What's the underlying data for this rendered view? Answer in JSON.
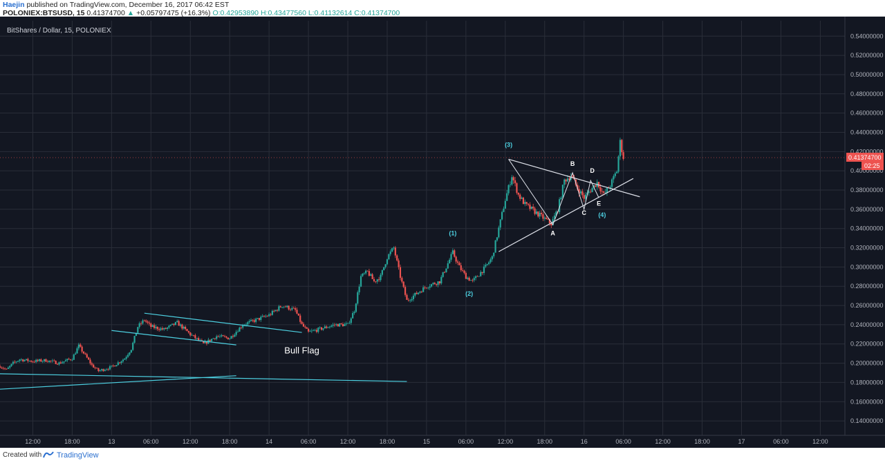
{
  "header": {
    "author": "Haejin",
    "published_text": "published on TradingView.com, December 16, 2017 06:42 EST",
    "symbol_interval": "POLONIEX:BTSUSD, 15",
    "last": "0.41374700",
    "change": "+0.05797475 (+16.3%)",
    "open": "O:0.42953890",
    "high": "H:0.43477560",
    "low": "L:0.41132614",
    "close": "C:0.41374700"
  },
  "footer": {
    "created_with": "Created with",
    "brand": "TradingView"
  },
  "colors": {
    "background": "#131722",
    "grid": "#2a2e39",
    "up": "#26a69a",
    "down": "#ef5350",
    "teal_line": "#4dd0e1",
    "white_line": "#e0e3eb",
    "price_tag": "#ef5350"
  },
  "chart_data": {
    "type": "candlestick",
    "title": "BitShares / Dollar, 15, POLONIEX",
    "x_range": [
      "2017-12-12T07:00",
      "2017-12-17T15:45"
    ],
    "ylim": [
      0.125,
      0.556
    ],
    "y_ticks": [
      "0.54000000",
      "0.52000000",
      "0.50000000",
      "0.48000000",
      "0.46000000",
      "0.44000000",
      "0.42000000",
      "0.40000000",
      "0.38000000",
      "0.36000000",
      "0.34000000",
      "0.32000000",
      "0.30000000",
      "0.28000000",
      "0.26000000",
      "0.24000000",
      "0.22000000",
      "0.20000000",
      "0.18000000",
      "0.16000000",
      "0.14000000"
    ],
    "x_ticks": [
      {
        "t": "2017-12-12T12:00",
        "label": "12:00"
      },
      {
        "t": "2017-12-12T18:00",
        "label": "18:00"
      },
      {
        "t": "2017-12-13T00:00",
        "label": "13"
      },
      {
        "t": "2017-12-13T06:00",
        "label": "06:00"
      },
      {
        "t": "2017-12-13T12:00",
        "label": "12:00"
      },
      {
        "t": "2017-12-13T18:00",
        "label": "18:00"
      },
      {
        "t": "2017-12-14T00:00",
        "label": "14"
      },
      {
        "t": "2017-12-14T06:00",
        "label": "06:00"
      },
      {
        "t": "2017-12-14T12:00",
        "label": "12:00"
      },
      {
        "t": "2017-12-14T18:00",
        "label": "18:00"
      },
      {
        "t": "2017-12-15T00:00",
        "label": "15"
      },
      {
        "t": "2017-12-15T06:00",
        "label": "06:00"
      },
      {
        "t": "2017-12-15T12:00",
        "label": "12:00"
      },
      {
        "t": "2017-12-15T18:00",
        "label": "18:00"
      },
      {
        "t": "2017-12-16T00:00",
        "label": "16"
      },
      {
        "t": "2017-12-16T06:00",
        "label": "06:00"
      },
      {
        "t": "2017-12-16T12:00",
        "label": "12:00"
      },
      {
        "t": "2017-12-16T18:00",
        "label": "18:00"
      },
      {
        "t": "2017-12-17T00:00",
        "label": "17"
      },
      {
        "t": "2017-12-17T06:00",
        "label": "06:00"
      },
      {
        "t": "2017-12-17T12:00",
        "label": "12:00"
      }
    ],
    "price_path": [
      [
        "2017-12-12T07:00",
        0.197
      ],
      [
        "2017-12-12T08:00",
        0.193
      ],
      [
        "2017-12-12T09:00",
        0.2
      ],
      [
        "2017-12-12T10:00",
        0.204
      ],
      [
        "2017-12-12T12:00",
        0.202
      ],
      [
        "2017-12-12T14:00",
        0.203
      ],
      [
        "2017-12-12T16:00",
        0.2
      ],
      [
        "2017-12-12T18:00",
        0.205
      ],
      [
        "2017-12-12T19:00",
        0.218
      ],
      [
        "2017-12-12T20:00",
        0.208
      ],
      [
        "2017-12-12T21:00",
        0.198
      ],
      [
        "2017-12-12T22:00",
        0.192
      ],
      [
        "2017-12-13T00:00",
        0.196
      ],
      [
        "2017-12-13T02:00",
        0.205
      ],
      [
        "2017-12-13T03:00",
        0.215
      ],
      [
        "2017-12-13T04:00",
        0.238
      ],
      [
        "2017-12-13T05:00",
        0.245
      ],
      [
        "2017-12-13T06:00",
        0.238
      ],
      [
        "2017-12-13T08:00",
        0.235
      ],
      [
        "2017-12-13T10:00",
        0.242
      ],
      [
        "2017-12-13T12:00",
        0.23
      ],
      [
        "2017-12-13T14:00",
        0.22
      ],
      [
        "2017-12-13T16:00",
        0.228
      ],
      [
        "2017-12-13T18:00",
        0.226
      ],
      [
        "2017-12-13T20:00",
        0.24
      ],
      [
        "2017-12-13T22:00",
        0.245
      ],
      [
        "2017-12-14T00:00",
        0.25
      ],
      [
        "2017-12-14T02:00",
        0.26
      ],
      [
        "2017-12-14T04:00",
        0.255
      ],
      [
        "2017-12-14T05:00",
        0.24
      ],
      [
        "2017-12-14T06:00",
        0.232
      ],
      [
        "2017-12-14T08:00",
        0.236
      ],
      [
        "2017-12-14T10:00",
        0.24
      ],
      [
        "2017-12-14T12:00",
        0.24
      ],
      [
        "2017-12-14T13:00",
        0.255
      ],
      [
        "2017-12-14T14:00",
        0.29
      ],
      [
        "2017-12-14T15:00",
        0.295
      ],
      [
        "2017-12-14T16:00",
        0.285
      ],
      [
        "2017-12-14T17:00",
        0.29
      ],
      [
        "2017-12-14T18:00",
        0.31
      ],
      [
        "2017-12-14T19:00",
        0.32
      ],
      [
        "2017-12-14T20:00",
        0.29
      ],
      [
        "2017-12-14T21:00",
        0.265
      ],
      [
        "2017-12-14T22:00",
        0.27
      ],
      [
        "2017-12-15T00:00",
        0.28
      ],
      [
        "2017-12-15T02:00",
        0.285
      ],
      [
        "2017-12-15T03:00",
        0.3
      ],
      [
        "2017-12-15T04:00",
        0.315
      ],
      [
        "2017-12-15T05:00",
        0.3
      ],
      [
        "2017-12-15T06:00",
        0.29
      ],
      [
        "2017-12-15T07:00",
        0.285
      ],
      [
        "2017-12-15T09:00",
        0.3
      ],
      [
        "2017-12-15T10:00",
        0.31
      ],
      [
        "2017-12-15T11:00",
        0.34
      ],
      [
        "2017-12-15T12:00",
        0.37
      ],
      [
        "2017-12-15T13:00",
        0.395
      ],
      [
        "2017-12-15T14:00",
        0.375
      ],
      [
        "2017-12-15T15:00",
        0.365
      ],
      [
        "2017-12-15T16:00",
        0.36
      ],
      [
        "2017-12-15T17:00",
        0.355
      ],
      [
        "2017-12-15T18:00",
        0.35
      ],
      [
        "2017-12-15T19:00",
        0.345
      ],
      [
        "2017-12-15T20:00",
        0.36
      ],
      [
        "2017-12-15T21:00",
        0.39
      ],
      [
        "2017-12-15T22:00",
        0.395
      ],
      [
        "2017-12-15T23:00",
        0.382
      ],
      [
        "2017-12-16T00:00",
        0.372
      ],
      [
        "2017-12-16T01:00",
        0.38
      ],
      [
        "2017-12-16T02:00",
        0.388
      ],
      [
        "2017-12-16T03:00",
        0.375
      ],
      [
        "2017-12-16T04:00",
        0.385
      ],
      [
        "2017-12-16T05:00",
        0.4
      ],
      [
        "2017-12-16T05:30",
        0.43
      ],
      [
        "2017-12-16T06:00",
        0.414
      ]
    ],
    "trend_lines": [
      {
        "name": "support-line-1",
        "color": "teal",
        "from": [
          "2017-12-12T07:00",
          0.189
        ],
        "to": [
          "2017-12-14T21:00",
          0.181
        ]
      },
      {
        "name": "support-line-2",
        "color": "teal",
        "from": [
          "2017-12-12T07:00",
          0.173
        ],
        "to": [
          "2017-12-13T19:00",
          0.187
        ]
      },
      {
        "name": "flag-upper-line",
        "color": "teal",
        "from": [
          "2017-12-13T05:00",
          0.252
        ],
        "to": [
          "2017-12-14T05:00",
          0.232
        ]
      },
      {
        "name": "flag-lower-line",
        "color": "teal",
        "from": [
          "2017-12-13T00:00",
          0.234
        ],
        "to": [
          "2017-12-13T19:00",
          0.219
        ]
      },
      {
        "name": "triangle-upper-line",
        "color": "white",
        "from": [
          "2017-12-15T12:30",
          0.412
        ],
        "to": [
          "2017-12-16T08:30",
          0.373
        ]
      },
      {
        "name": "triangle-lower-line",
        "color": "white",
        "from": [
          "2017-12-15T11:00",
          0.316
        ],
        "to": [
          "2017-12-16T07:30",
          0.392
        ]
      },
      {
        "name": "abcde-zigzag",
        "color": "white",
        "points": [
          [
            "2017-12-15T12:30",
            0.412
          ],
          [
            "2017-12-15T19:15",
            0.344
          ],
          [
            "2017-12-15T22:15",
            0.398
          ],
          [
            "2017-12-16T00:00",
            0.36
          ],
          [
            "2017-12-16T01:00",
            0.39
          ],
          [
            "2017-12-16T02:15",
            0.372
          ]
        ]
      }
    ],
    "annotations": [
      {
        "text": "(1)",
        "color": "teal",
        "t": "2017-12-15T04:00",
        "y": 0.333
      },
      {
        "text": "(2)",
        "color": "teal",
        "t": "2017-12-15T06:30",
        "y": 0.27
      },
      {
        "text": "(3)",
        "color": "teal",
        "t": "2017-12-15T12:30",
        "y": 0.425
      },
      {
        "text": "(4)",
        "color": "teal",
        "t": "2017-12-16T02:45",
        "y": 0.352
      },
      {
        "text": "A",
        "color": "white",
        "t": "2017-12-15T19:15",
        "y": 0.333
      },
      {
        "text": "B",
        "color": "white",
        "t": "2017-12-15T22:15",
        "y": 0.405
      },
      {
        "text": "C",
        "color": "white",
        "t": "2017-12-16T00:00",
        "y": 0.354
      },
      {
        "text": "D",
        "color": "white",
        "t": "2017-12-16T01:15",
        "y": 0.398
      },
      {
        "text": "E",
        "color": "white",
        "t": "2017-12-16T02:15",
        "y": 0.364
      },
      {
        "text": "Bull Flag",
        "color": "white",
        "t": "2017-12-14T05:00",
        "y": 0.21
      }
    ],
    "last_price": {
      "label": "0.41374700",
      "value": 0.413747,
      "countdown": "02:25"
    }
  }
}
